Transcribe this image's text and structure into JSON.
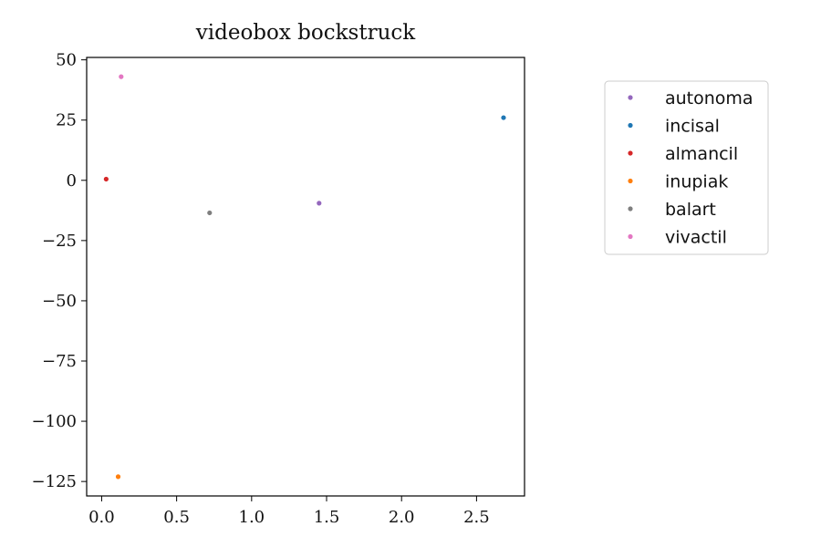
{
  "chart_data": {
    "type": "scatter",
    "title": "videobox bockstruck",
    "xlabel": "",
    "ylabel": "",
    "xlim": [
      -0.1,
      2.82
    ],
    "ylim": [
      -131,
      51
    ],
    "x_ticks": [
      0.0,
      0.5,
      1.0,
      1.5,
      2.0,
      2.5
    ],
    "x_tick_labels": [
      "0.0",
      "0.5",
      "1.0",
      "1.5",
      "2.0",
      "2.5"
    ],
    "y_ticks": [
      50,
      25,
      0,
      -25,
      -50,
      -75,
      -100,
      -125
    ],
    "y_tick_labels": [
      "50",
      "25",
      "0",
      "−25",
      "−50",
      "−75",
      "−100",
      "−125"
    ],
    "grid": false,
    "legend_position": "outside-right",
    "series": [
      {
        "name": "autonoma",
        "color": "#9467bd",
        "points": [
          {
            "x": 1.45,
            "y": -9.5
          }
        ]
      },
      {
        "name": "incisal",
        "color": "#1f77b4",
        "points": [
          {
            "x": 2.68,
            "y": 26
          }
        ]
      },
      {
        "name": "almancil",
        "color": "#d62728",
        "points": [
          {
            "x": 0.03,
            "y": 0.5
          }
        ]
      },
      {
        "name": "inupiak",
        "color": "#ff7f0e",
        "points": [
          {
            "x": 0.11,
            "y": -123
          }
        ]
      },
      {
        "name": "balart",
        "color": "#7f7f7f",
        "points": [
          {
            "x": 0.72,
            "y": -13.5
          }
        ]
      },
      {
        "name": "vivactil",
        "color": "#e377c2",
        "points": [
          {
            "x": 0.13,
            "y": 43
          }
        ]
      }
    ]
  }
}
